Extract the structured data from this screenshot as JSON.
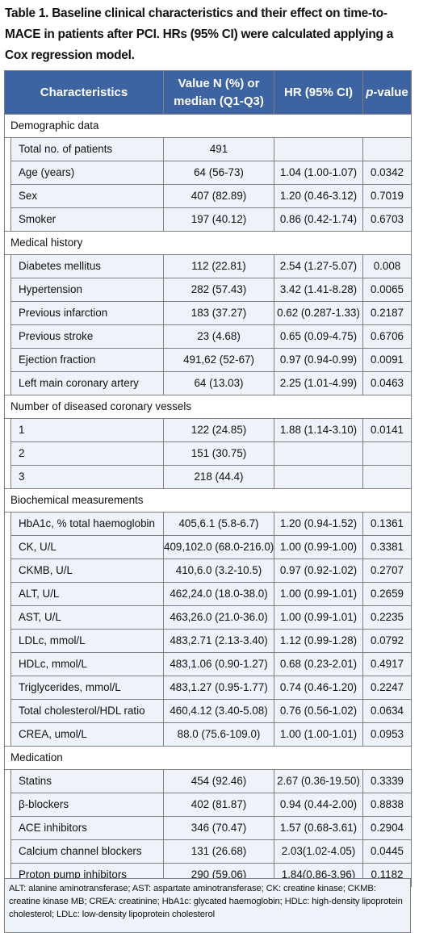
{
  "caption": "Table 1. Baseline clinical characteristics and their effect on time-to-MACE in patients after PCI. HRs (95% CI) were calculated applying a Cox regression model.",
  "headers": {
    "characteristics": "Characteristics",
    "value_line1": "Value N (%) or",
    "value_line2": "median (Q1-Q3)",
    "hr": "HR (95% CI)",
    "p_italic": "p",
    "p_rest": "-value"
  },
  "sections": [
    {
      "title": "Demographic data",
      "rows": [
        {
          "label": "Total no. of patients",
          "value": "491",
          "hr": "",
          "p": ""
        },
        {
          "label": "Age (years)",
          "value": "64 (56-73)",
          "hr": "1.04 (1.00-1.07)",
          "p": "0.0342"
        },
        {
          "label": "Sex",
          "value": "407 (82.89)",
          "hr": "1.20 (0.46-3.12)",
          "p": "0.7019"
        },
        {
          "label": "Smoker",
          "value": "197 (40.12)",
          "hr": "0.86 (0.42-1.74)",
          "p": "0.6703"
        }
      ]
    },
    {
      "title": "Medical history",
      "rows": [
        {
          "label": "Diabetes mellitus",
          "value": "112 (22.81)",
          "hr": "2.54 (1.27-5.07)",
          "p": "0.008"
        },
        {
          "label": "Hypertension",
          "value": "282 (57.43)",
          "hr": "3.42 (1.41-8.28)",
          "p": "0.0065"
        },
        {
          "label": "Previous infarction",
          "value": "183 (37.27)",
          "hr": "0.62 (0.287-1.33)",
          "p": "0.2187"
        },
        {
          "label": "Previous stroke",
          "value": "23 (4.68)",
          "hr": "0.65 (0.09-4.75)",
          "p": "0.6706"
        },
        {
          "label": "Ejection fraction",
          "value": "491,62 (52-67)",
          "hr": "0.97 (0.94-0.99)",
          "p": "0.0091"
        },
        {
          "label": "Left main coronary artery",
          "value": "64 (13.03)",
          "hr": "2.25 (1.01-4.99)",
          "p": "0.0463"
        }
      ]
    },
    {
      "title": "Number of diseased coronary vessels",
      "rows": [
        {
          "label": "1",
          "value": "122 (24.85)",
          "hr": "1.88 (1.14-3.10)",
          "p": "0.0141"
        },
        {
          "label": "2",
          "value": "151 (30.75)",
          "hr": "",
          "p": ""
        },
        {
          "label": "3",
          "value": "218 (44.4)",
          "hr": "",
          "p": ""
        }
      ]
    },
    {
      "title": "Biochemical measurements",
      "rows": [
        {
          "label": "HbA1c, % total haemoglobin",
          "value": "405,6.1 (5.8-6.7)",
          "hr": "1.20 (0.94-1.52)",
          "p": "0.1361"
        },
        {
          "label": "CK, U/L",
          "value": "409,102.0 (68.0-216.0)",
          "hr": "1.00 (0.99-1.00)",
          "p": "0.3381"
        },
        {
          "label": "CKMB, U/L",
          "value": "410,6.0 (3.2-10.5)",
          "hr": "0.97 (0.92-1.02)",
          "p": "0.2707"
        },
        {
          "label": "ALT, U/L",
          "value": "462,24.0 (18.0-38.0)",
          "hr": "1.00 (0.99-1.01)",
          "p": "0.2659"
        },
        {
          "label": "AST, U/L",
          "value": "463,26.0 (21.0-36.0)",
          "hr": "1.00 (0.99-1.01)",
          "p": "0.2235"
        },
        {
          "label": "LDLc, mmol/L",
          "value": "483,2.71 (2.13-3.40)",
          "hr": "1.12 (0.99-1.28)",
          "p": "0.0792"
        },
        {
          "label": "HDLc, mmol/L",
          "value": "483,1.06 (0.90-1.27)",
          "hr": "0.68 (0.23-2.01)",
          "p": "0.4917"
        },
        {
          "label": "Triglycerides, mmol/L",
          "value": "483,1.27 (0.95-1.77)",
          "hr": "0.74 (0.46-1.20)",
          "p": "0.2247"
        },
        {
          "label": "Total cholesterol/HDL ratio",
          "value": "460,4.12 (3.40-5.08)",
          "hr": "0.76 (0.56-1.02)",
          "p": "0.0634"
        },
        {
          "label": "CREA, umol/L",
          "value": "88.0 (75.6-109.0)",
          "hr": "1.00 (1.00-1.01)",
          "p": "0.0953"
        }
      ]
    },
    {
      "title": "Medication",
      "rows": [
        {
          "label": "Statins",
          "value": "454 (92.46)",
          "hr": "2.67 (0.36-19.50)",
          "p": "0.3339"
        },
        {
          "label": "β-blockers",
          "value": "402 (81.87)",
          "hr": "0.94 (0.44-2.00)",
          "p": "0.8838"
        },
        {
          "label": "ACE inhibitors",
          "value": "346 (70.47)",
          "hr": "1.57 (0.68-3.61)",
          "p": "0.2904"
        },
        {
          "label": "Calcium channel blockers",
          "value": "131 (26.68)",
          "hr": "2.03(1.02-4.05)",
          "p": "0.0445"
        },
        {
          "label": "Proton pump inhibitors",
          "value": "290 (59.06)",
          "hr": "1.84(0.86-3.96)",
          "p": "0.1182"
        }
      ]
    }
  ],
  "footnote": "ALT: alanine aminotransferase; AST: aspartate aminotransferase; CK: creatine kinase; CKMB: creatine kinase MB; CREA: creatinine; HbA1c: glycated haemoglobin; HDLc: high-density lipoprotein cholesterol; LDLc: low-density lipoprotein cholesterol"
}
